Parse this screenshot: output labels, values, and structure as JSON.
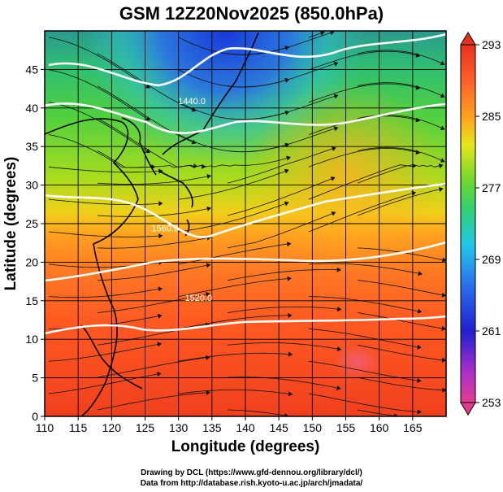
{
  "header": {
    "title": "GSM 12Z20Nov2025 (850.0hPa)"
  },
  "map": {
    "lon_range": [
      110,
      170
    ],
    "lat_range": [
      0,
      50
    ],
    "x_ticks": [
      "110",
      "115",
      "120",
      "125",
      "130",
      "135",
      "140",
      "145",
      "150",
      "155",
      "160",
      "165"
    ],
    "y_ticks": [
      "0",
      "5",
      "10",
      "15",
      "20",
      "25",
      "30",
      "35",
      "40",
      "45"
    ],
    "xlabel": "Longitude (degrees)",
    "ylabel": "Latitude  (degrees)",
    "grid": true,
    "contour_labels": [
      {
        "text": "1440.0",
        "lon": 132.0,
        "lat": 40.5
      },
      {
        "text": "1560.0",
        "lon": 128.0,
        "lat": 24.0
      },
      {
        "text": "1520.0",
        "lon": 133.0,
        "lat": 15.0
      }
    ]
  },
  "colorbar": {
    "labels": [
      "293",
      "285",
      "277",
      "269",
      "261",
      "253"
    ],
    "range": [
      253,
      293
    ],
    "colors": [
      "#e43c8c",
      "#b030c8",
      "#2020d0",
      "#2a78ee",
      "#22c8e6",
      "#30d070",
      "#70d830",
      "#e6e61e",
      "#ffa020",
      "#ff6028",
      "#e8301e"
    ]
  },
  "credits": {
    "line1": "Drawing by DCL (https://www.gfd-dennou.org/library/dcl/)",
    "line2": "Data from http://database.rish.kyoto-u.ac.jp/arch/jmadata/"
  }
}
